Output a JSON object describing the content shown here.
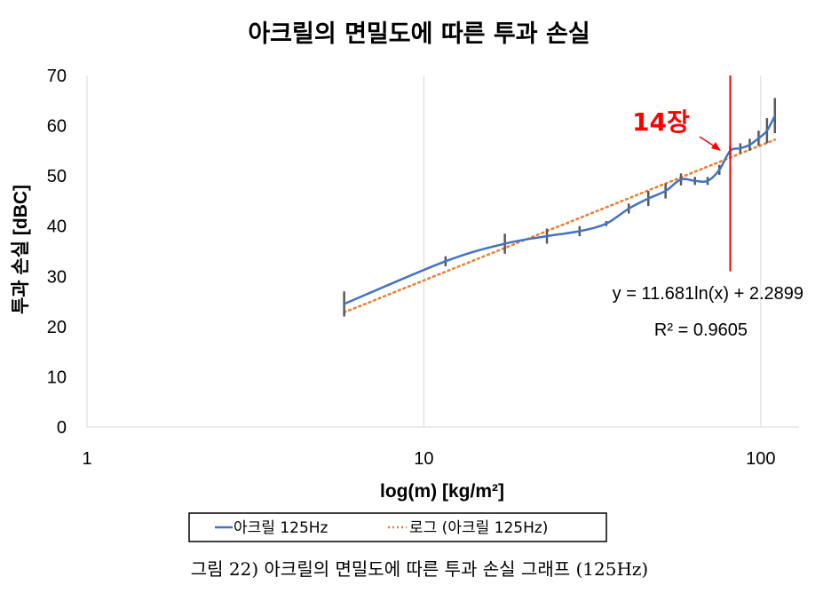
{
  "chart_data": {
    "type": "line",
    "title": "아크릴의 면밀도에 따른 투과 손실",
    "xlabel": "log(m) [kg/m²]",
    "ylabel": "투과 손실 [dBC]",
    "x_scale": "log",
    "xlim": [
      1,
      130
    ],
    "ylim": [
      0,
      70
    ],
    "x_ticks": [
      "1",
      "10",
      "100"
    ],
    "y_ticks": [
      "0",
      "10",
      "20",
      "30",
      "40",
      "50",
      "60",
      "70"
    ],
    "grid": "vertical gridlines at decades",
    "legend_position": "bottom",
    "series": [
      {
        "name": "아크릴 125Hz",
        "color": "#4472c4",
        "x": [
          5.8,
          11.6,
          17.4,
          23.2,
          29,
          34.8,
          40.6,
          46.4,
          52.2,
          58,
          63.8,
          69.6,
          75.4,
          81.2,
          87,
          92.8,
          98.6,
          104.4,
          110.2
        ],
        "y": [
          24.5,
          33.0,
          36.5,
          38.0,
          39.0,
          40.5,
          43.5,
          45.5,
          47.0,
          49.3,
          49.0,
          49.0,
          51.2,
          55.0,
          55.5,
          56.2,
          57.5,
          59.0,
          62.0
        ],
        "error": [
          2.5,
          1.0,
          2.0,
          1.5,
          1.0,
          0.5,
          1.0,
          1.5,
          1.5,
          1.2,
          0.8,
          0.8,
          1.0,
          1.0,
          1.0,
          1.2,
          1.5,
          2.5,
          3.5
        ]
      },
      {
        "name": "로그 (아크릴 125Hz)",
        "color": "#ed7d31",
        "trendline": "logarithmic",
        "equation": "y = 11.681ln(x) + 2.2899",
        "r_squared": "R² = 0.9605",
        "x_range": [
          5.8,
          110.2
        ]
      }
    ],
    "annotations": [
      {
        "text": "14장",
        "color": "#ff0000",
        "marker_line_x": 81.2
      }
    ]
  },
  "caption": "그림 22) 아크릴의 면밀도에 따른 투과 손실 그래프 (125Hz)"
}
